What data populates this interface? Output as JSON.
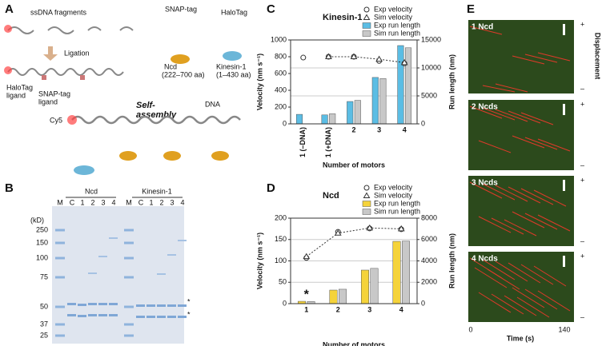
{
  "panels": {
    "a": {
      "letter": "A",
      "ssdna": "ssDNA fragments",
      "ligation": "Ligation",
      "halotag_ligand": [
        "HaloTag",
        "ligand"
      ],
      "snap_ligand": [
        "SNAP-tag",
        "ligand"
      ],
      "snap_tag": "SNAP-tag",
      "halotag": "HaloTag",
      "ncd": [
        "Ncd",
        "(222–700 aa)"
      ],
      "kinesin": [
        "Kinesin-1",
        "(1–430 aa)"
      ],
      "self_assembly": [
        "Self-",
        "assembly"
      ],
      "dna": "DNA",
      "cy5": "Cy5"
    },
    "b": {
      "letter": "B",
      "groups": [
        "Ncd",
        "Kinesin-1"
      ],
      "lanes": [
        "M",
        "C",
        "1",
        "2",
        "3",
        "4"
      ],
      "unit": "(kD)",
      "markers": [
        "250",
        "150",
        "100",
        "75",
        "50",
        "37",
        "25"
      ],
      "stars": [
        "*",
        "*"
      ]
    },
    "e": {
      "letter": "E",
      "kymographs": [
        "1 Ncd",
        "2 Ncds",
        "3 Ncds",
        "4 Ncds"
      ],
      "plus": "+",
      "minus": "–",
      "ylabel": "Displacement",
      "xlabel": "Time (s)",
      "t0": "0",
      "t1": "140"
    }
  },
  "chart_data": [
    {
      "type": "combo",
      "letter": "C",
      "title": "Kinesin-1",
      "categories": [
        "1 (–DNA)",
        "1 (+DNA)",
        "2",
        "3",
        "4"
      ],
      "series": [
        {
          "name": "Exp velocity",
          "kind": "marker",
          "marker": "circle",
          "color": "#333333",
          "values": [
            790,
            800,
            800,
            750,
            720
          ]
        },
        {
          "name": "Sim velocity",
          "kind": "line",
          "marker": "triangle",
          "color": "#333333",
          "values": [
            null,
            800,
            800,
            770,
            730
          ]
        },
        {
          "name": "Exp run length",
          "kind": "bar",
          "axis": "y2",
          "color": "#5bbde4",
          "values": [
            1700,
            1600,
            4000,
            8300,
            14000
          ]
        },
        {
          "name": "Sim run length",
          "kind": "bar",
          "axis": "y2",
          "color": "#c8c8c8",
          "values": [
            null,
            1800,
            4200,
            8100,
            13600
          ]
        }
      ],
      "xlabel": "Number of motors",
      "ylabel": "Velocity (nm s⁻¹)",
      "y2label": "Run length (nm)",
      "ylim": [
        0,
        1000
      ],
      "yticks": [
        0,
        200,
        400,
        600,
        800,
        1000
      ],
      "y2lim": [
        0,
        15000
      ],
      "y2ticks": [
        0,
        5000,
        10000,
        15000
      ],
      "grid": true,
      "legend": "upper right"
    },
    {
      "type": "combo",
      "letter": "D",
      "title": "Ncd",
      "categories": [
        "1",
        "2",
        "3",
        "4"
      ],
      "series": [
        {
          "name": "Exp velocity",
          "kind": "marker",
          "marker": "circle",
          "color": "#333333",
          "values": [
            107,
            168,
            176,
            174
          ]
        },
        {
          "name": "Sim velocity",
          "kind": "line",
          "marker": "triangle",
          "color": "#333333",
          "values": [
            110,
            165,
            177,
            175
          ]
        },
        {
          "name": "Exp run length",
          "kind": "bar",
          "axis": "y2",
          "color": "#f5d33a",
          "values": [
            220,
            1270,
            3140,
            5830
          ]
        },
        {
          "name": "Sim run length",
          "kind": "bar",
          "axis": "y2",
          "color": "#c8c8c8",
          "values": [
            200,
            1350,
            3300,
            5850
          ]
        }
      ],
      "annotation": "*",
      "xlabel": "Number of motors",
      "ylabel": "Velocity (nm s⁻¹)",
      "y2label": "Run length (nm)",
      "ylim": [
        0,
        200
      ],
      "yticks": [
        0,
        50,
        100,
        150,
        200
      ],
      "y2lim": [
        0,
        8000
      ],
      "y2ticks": [
        0,
        2000,
        4000,
        6000,
        8000
      ],
      "grid": true,
      "legend": "upper right"
    }
  ]
}
